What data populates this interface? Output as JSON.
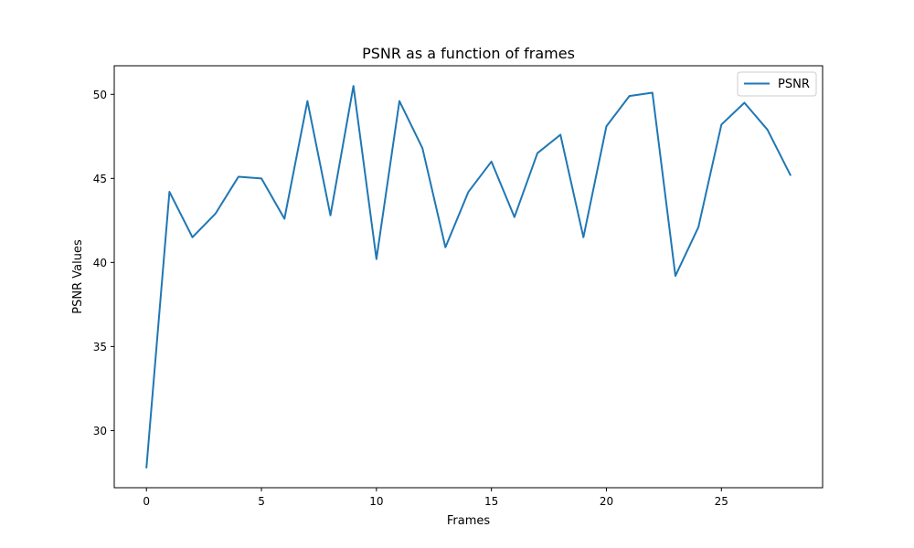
{
  "chart_data": {
    "type": "line",
    "title": "PSNR as a function of frames",
    "xlabel": "Frames",
    "ylabel": "PSNR Values",
    "xlim": [
      -1.4,
      29.4
    ],
    "ylim": [
      26.6,
      51.7
    ],
    "xticks": [
      0,
      5,
      10,
      15,
      20,
      25
    ],
    "yticks": [
      30,
      35,
      40,
      45,
      50
    ],
    "grid": false,
    "legend_position": "top-right",
    "series": [
      {
        "name": "PSNR",
        "color": "#1f77b4",
        "x": [
          0,
          1,
          2,
          3,
          4,
          5,
          6,
          7,
          8,
          9,
          10,
          11,
          12,
          13,
          14,
          15,
          16,
          17,
          18,
          19,
          20,
          21,
          22,
          23,
          24,
          25,
          26,
          27,
          28
        ],
        "y": [
          27.8,
          44.2,
          41.5,
          42.9,
          45.1,
          45.0,
          42.6,
          49.6,
          42.8,
          50.5,
          40.2,
          49.6,
          46.8,
          40.9,
          44.2,
          46.0,
          42.7,
          46.5,
          47.6,
          41.5,
          48.1,
          49.9,
          50.1,
          39.2,
          42.1,
          48.2,
          49.5,
          47.9,
          45.2
        ]
      }
    ]
  }
}
